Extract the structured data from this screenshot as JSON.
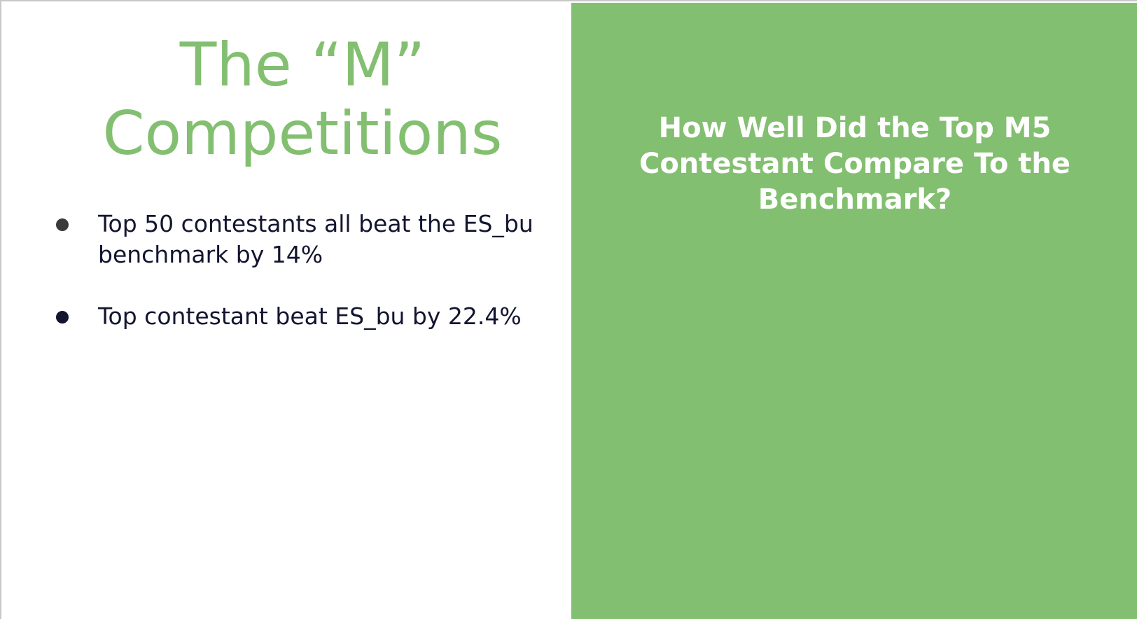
{
  "slide": {
    "title_line1": "The “M”",
    "title_line2": "Competitions",
    "bullets": [
      "Top 50 contestants all beat the ES_bu benchmark by 14%",
      "Top contestant beat ES_bu by 22.4%"
    ],
    "question_line1": "How Well Did the Top M5",
    "question_line2": "Contestant Compare To the",
    "question_line3": "Benchmark?"
  },
  "colors": {
    "accent_green": "#83bf70",
    "text_dark": "#131530",
    "background": "#ffffff"
  }
}
